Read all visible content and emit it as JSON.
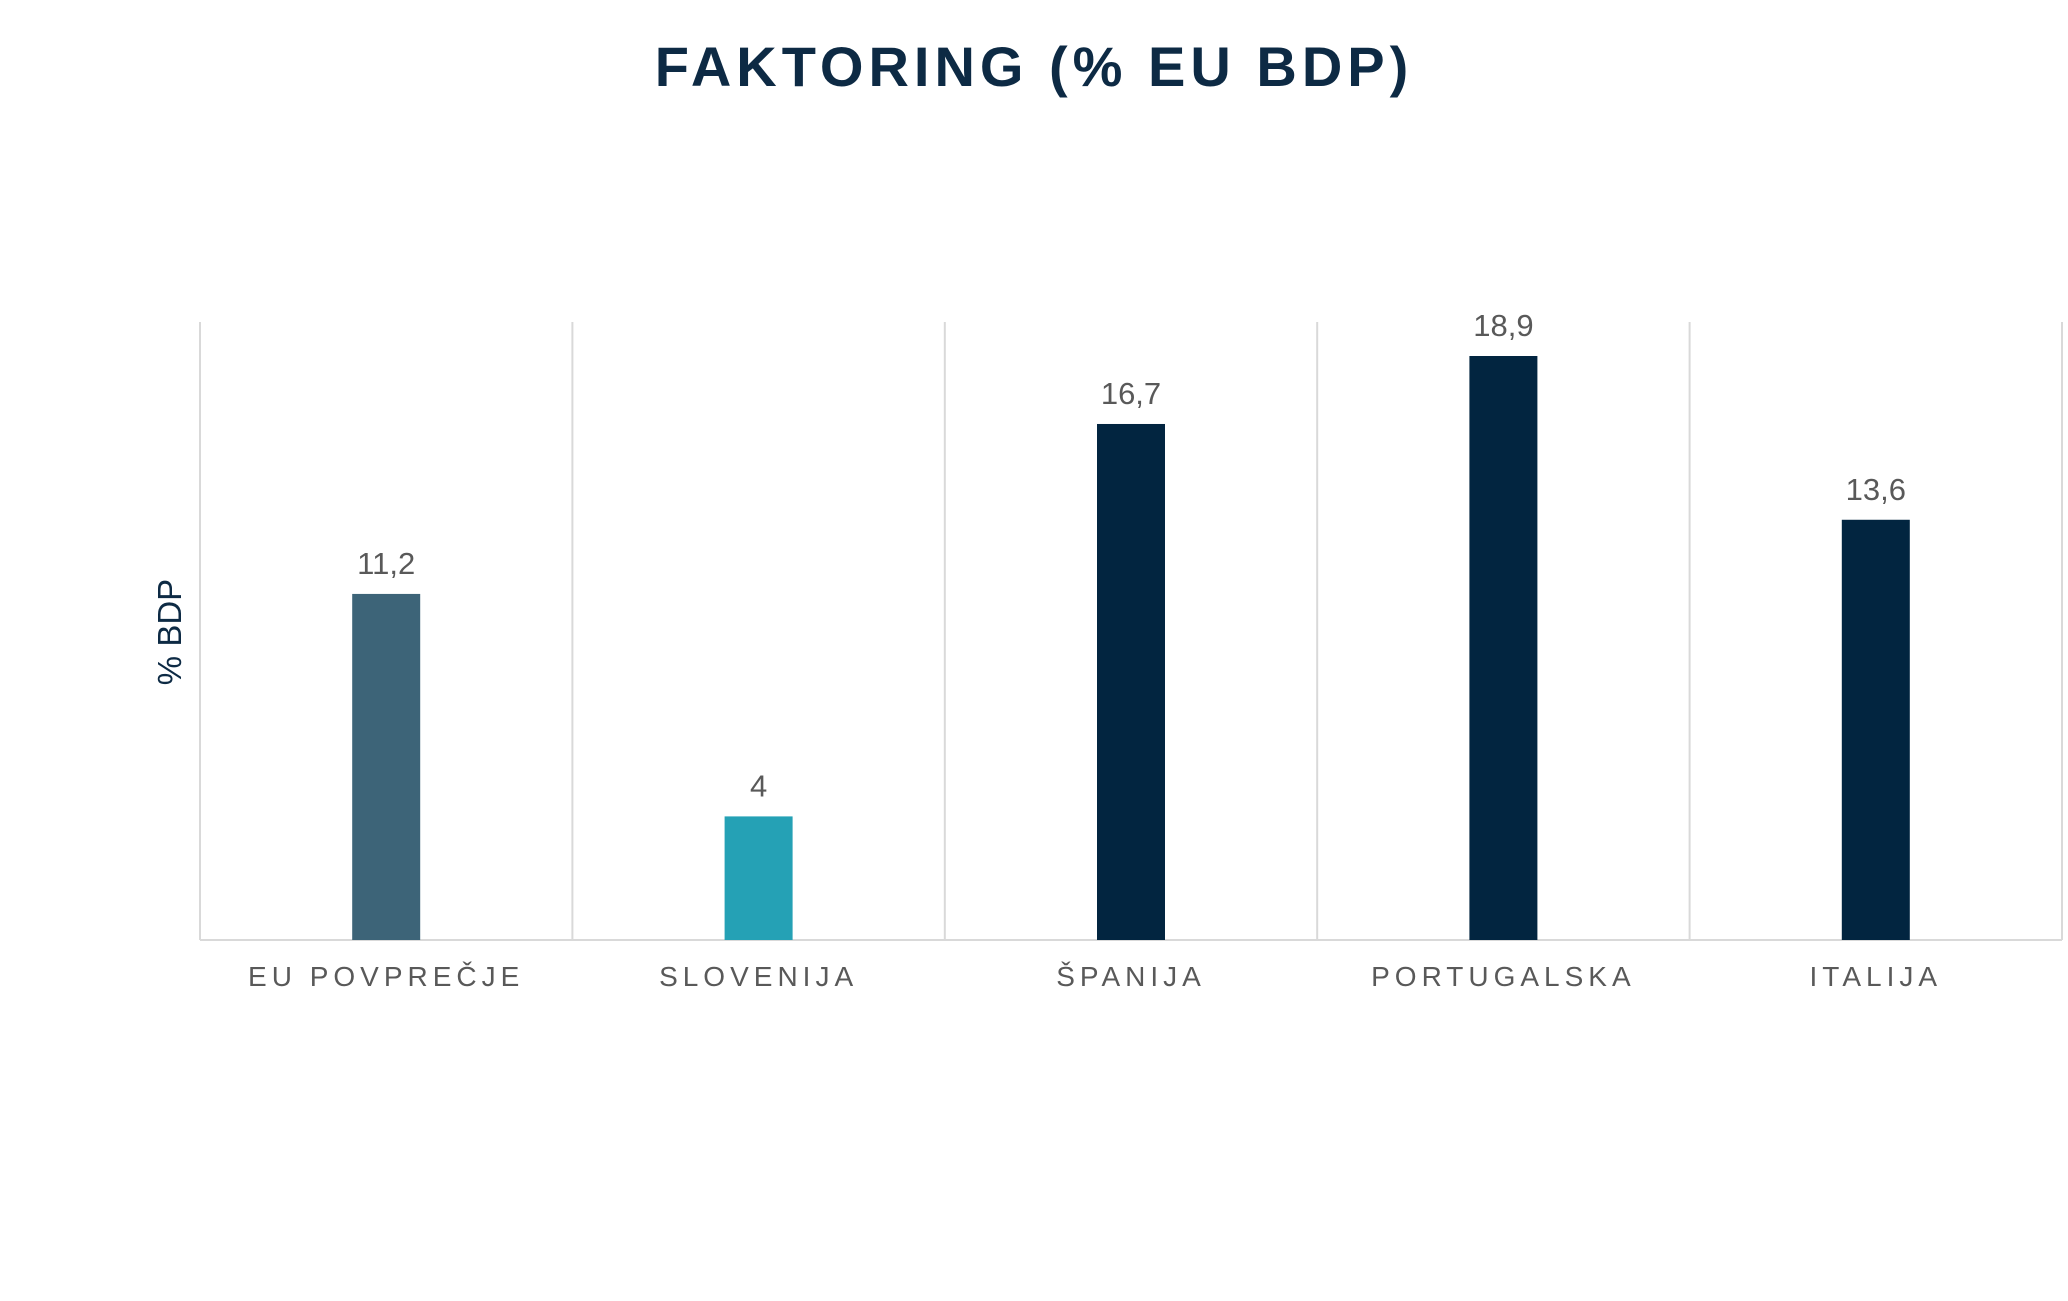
{
  "chart_data": {
    "type": "bar",
    "title": "FAKTORING (% EU BDP)",
    "xlabel": "",
    "ylabel": "% BDP",
    "categories": [
      "EU POVPREČJE",
      "SLOVENIJA",
      "ŠPANIJA",
      "PORTUGALSKA",
      "ITALIJA"
    ],
    "values": [
      11.2,
      4,
      16.7,
      18.9,
      13.6
    ],
    "value_labels": [
      "11,2",
      "4",
      "16,7",
      "18,9",
      "13,6"
    ],
    "ylim": [
      0,
      20
    ],
    "grid": "vertical category separators",
    "legend": "none"
  },
  "colors": {
    "title": "#0d2a44",
    "ylabel": "#0d2a44",
    "bars": [
      "#3d6478",
      "#25a1b5",
      "#022540",
      "#022540",
      "#022540"
    ],
    "separators": "#d9d9d9",
    "text": "#595959"
  }
}
